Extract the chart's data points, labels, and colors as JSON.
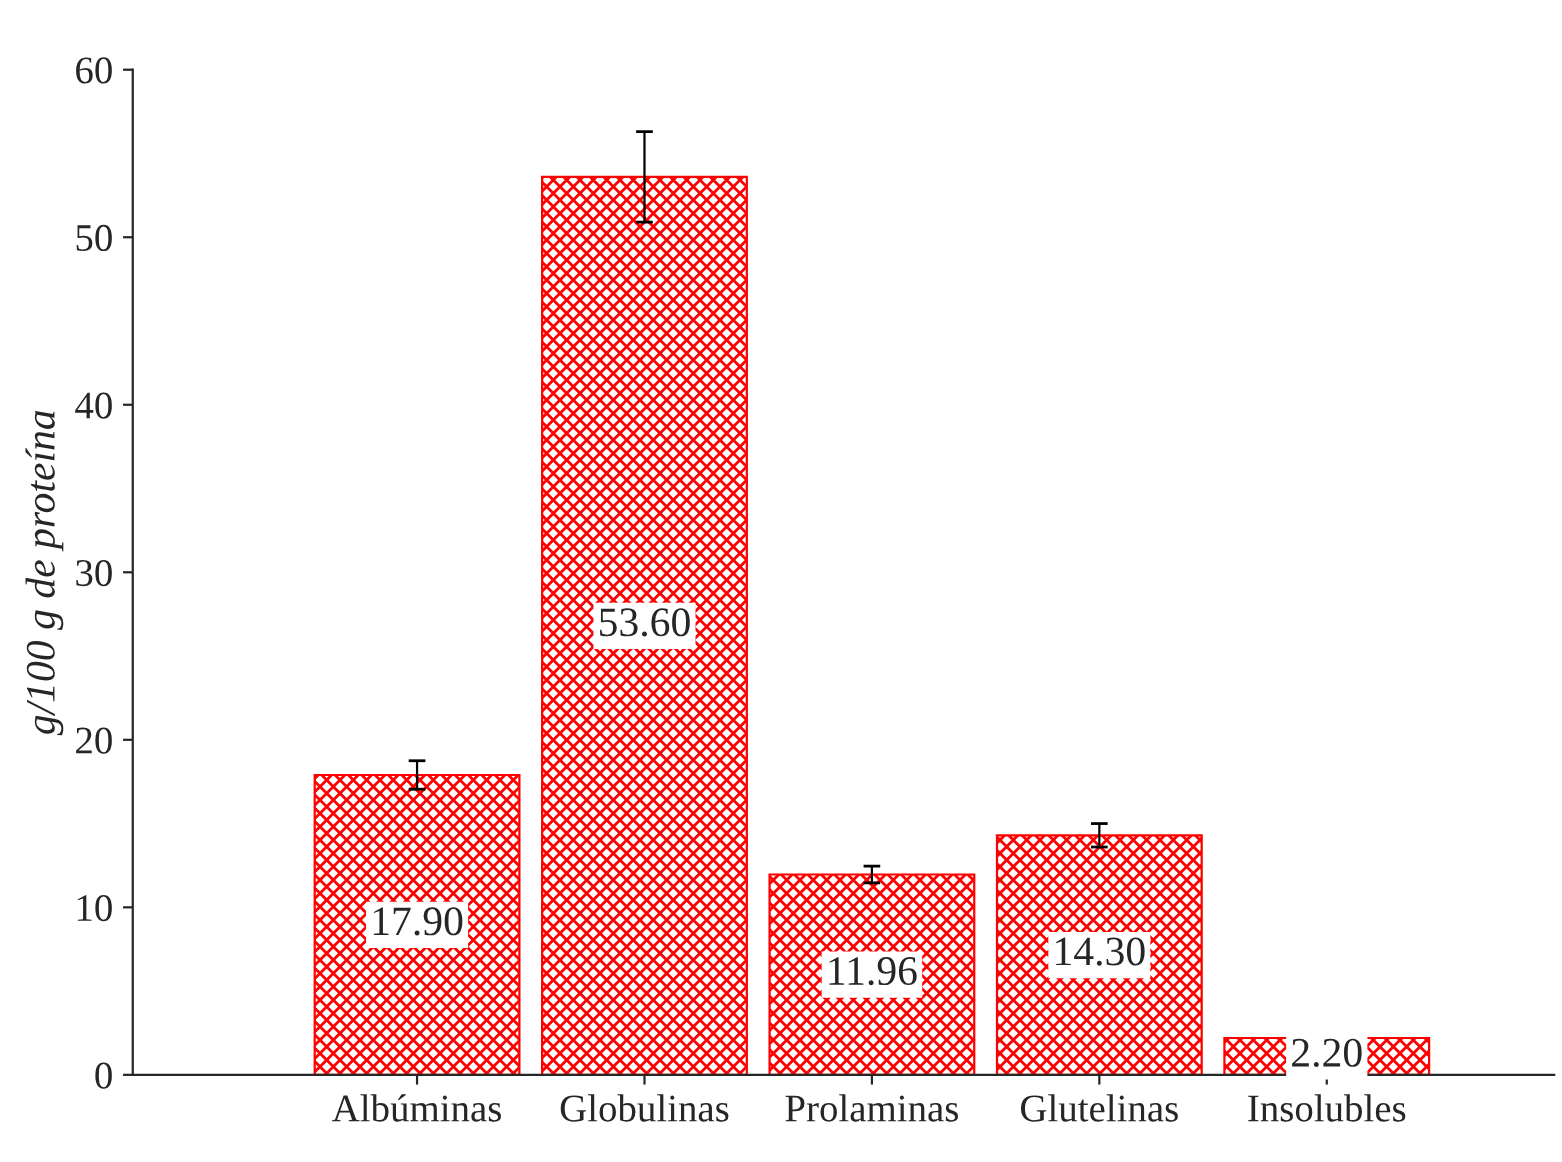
{
  "chart_data": {
    "type": "bar",
    "ylabel": "g/100 g de proteína",
    "categories": [
      "Albúminas",
      "Globulinas",
      "Prolaminas",
      "Glutelinas",
      "Insolubles"
    ],
    "values": [
      17.9,
      53.6,
      11.96,
      14.3,
      2.2
    ],
    "errors": [
      0.85,
      2.7,
      0.5,
      0.7,
      null
    ],
    "color": "#ff0000",
    "value_labels": [
      "17.90",
      "53.60",
      "11.96",
      "14.30",
      "2.20"
    ],
    "ylim": [
      0,
      60
    ],
    "yticks": [
      0,
      10,
      20,
      30,
      40,
      50,
      60
    ],
    "grid": false,
    "legend": false
  }
}
